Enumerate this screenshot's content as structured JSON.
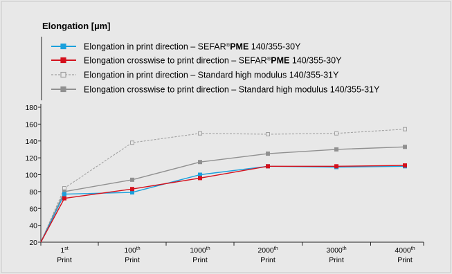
{
  "chart_data": {
    "type": "line",
    "title": "Elongation [µm]",
    "categories": [
      {
        "main": "1",
        "sup": "st",
        "sub": "Print"
      },
      {
        "main": "100",
        "sup": "th",
        "sub": "Print"
      },
      {
        "main": "1000",
        "sup": "th",
        "sub": "Print"
      },
      {
        "main": "2000",
        "sup": "th",
        "sub": "Print"
      },
      {
        "main": "3000",
        "sup": "th",
        "sub": "Print"
      },
      {
        "main": "4000",
        "sup": "th",
        "sub": "Print"
      }
    ],
    "origin_y": 20,
    "ylim": [
      20,
      180
    ],
    "yticks": [
      20,
      40,
      60,
      80,
      100,
      120,
      140,
      160,
      180
    ],
    "grid": false,
    "legend_position": "top-left",
    "series": [
      {
        "name_parts": [
          "Elongation in print direction – SEFAR",
          "®",
          "PME",
          " 140/355-30Y"
        ],
        "color": "#1aa0dc",
        "dashed": false,
        "marker": "filled-square",
        "values": [
          77,
          79,
          100,
          110,
          109,
          110
        ]
      },
      {
        "name_parts": [
          "Elongation crosswise to print direction – SEFAR",
          "®",
          "PME",
          " 140/355-30Y"
        ],
        "color": "#d4101c",
        "dashed": false,
        "marker": "filled-square",
        "values": [
          72,
          83,
          96,
          110,
          110,
          111
        ]
      },
      {
        "name_parts": [
          "Elongation in print direction – Standard high modulus 140/355-31Y"
        ],
        "color": "#a0a0a0",
        "dashed": true,
        "marker": "open-square",
        "values": [
          84,
          138,
          149,
          148,
          149,
          154
        ]
      },
      {
        "name_parts": [
          "Elongation crosswise to print direction – Standard high modulus 140/355-31Y"
        ],
        "color": "#909090",
        "dashed": false,
        "marker": "filled-square",
        "values": [
          80,
          94,
          115,
          125,
          130,
          133
        ]
      }
    ]
  }
}
